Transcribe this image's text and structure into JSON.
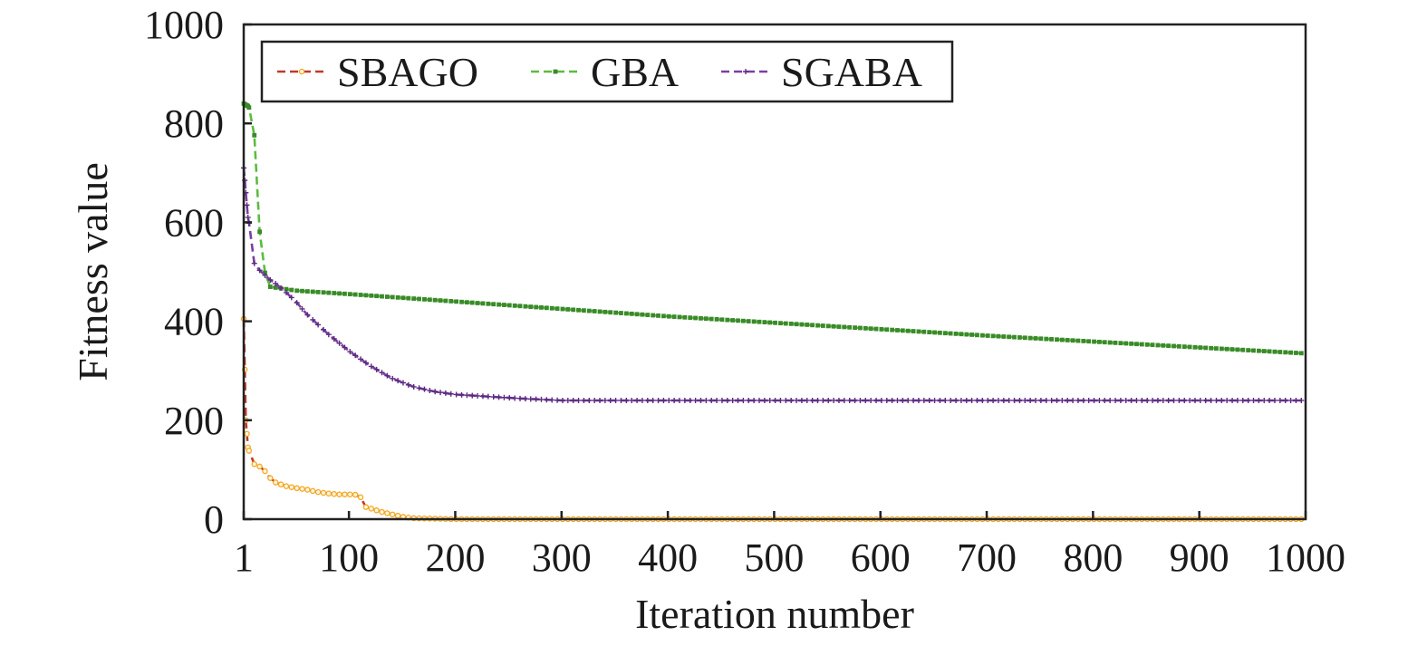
{
  "colors": {
    "sbago_line": "#c0392b",
    "sbago_marker": "#f5a623",
    "gba_line": "#5dbb3f",
    "gba_marker": "#3a8a2a",
    "sgaba_line": "#7b3fa0",
    "sgaba_marker": "#5a2a80"
  },
  "chart_data": {
    "type": "line",
    "title": "",
    "xlabel": "Iteration number",
    "ylabel": "Fitness value",
    "xlim": [
      1,
      1000
    ],
    "ylim": [
      0,
      1000
    ],
    "x_ticks": [
      "1",
      "100",
      "200",
      "300",
      "400",
      "500",
      "600",
      "700",
      "800",
      "900",
      "1000"
    ],
    "x_tick_values": [
      1,
      100,
      200,
      300,
      400,
      500,
      600,
      700,
      800,
      900,
      1000
    ],
    "y_ticks": [
      "0",
      "200",
      "400",
      "600",
      "800",
      "1000"
    ],
    "y_tick_values": [
      0,
      200,
      400,
      600,
      800,
      1000
    ],
    "grid": false,
    "legend_position": "top-left",
    "series": [
      {
        "name": "SBAGO",
        "marker": "circle",
        "x": [
          1,
          3,
          5,
          10,
          15,
          20,
          25,
          30,
          40,
          50,
          60,
          70,
          80,
          90,
          100,
          110,
          115,
          120,
          130,
          140,
          150,
          160,
          180,
          200,
          300,
          400,
          500,
          600,
          700,
          800,
          900,
          1000
        ],
        "y": [
          405,
          200,
          145,
          112,
          108,
          100,
          85,
          75,
          67,
          63,
          60,
          55,
          52,
          50,
          50,
          49,
          25,
          22,
          15,
          10,
          5,
          2,
          1,
          0,
          0,
          0,
          0,
          0,
          0,
          0,
          0,
          0
        ]
      },
      {
        "name": "GBA",
        "marker": "square",
        "x": [
          1,
          5,
          10,
          15,
          20,
          25,
          50,
          100,
          200,
          300,
          400,
          500,
          600,
          700,
          800,
          900,
          1000
        ],
        "y": [
          840,
          835,
          820,
          600,
          505,
          470,
          462,
          455,
          440,
          425,
          410,
          397,
          384,
          371,
          359,
          347,
          335
        ]
      },
      {
        "name": "SGABA",
        "marker": "plus",
        "x": [
          1,
          3,
          5,
          8,
          10,
          15,
          20,
          25,
          30,
          40,
          50,
          60,
          80,
          100,
          120,
          140,
          160,
          180,
          200,
          230,
          260,
          300,
          400,
          500,
          600,
          700,
          800,
          900,
          1000
        ],
        "y": [
          710,
          660,
          610,
          575,
          520,
          505,
          495,
          485,
          478,
          460,
          440,
          415,
          375,
          340,
          310,
          285,
          268,
          258,
          252,
          248,
          244,
          240,
          240,
          240,
          240,
          240,
          240,
          240,
          240
        ]
      }
    ]
  }
}
